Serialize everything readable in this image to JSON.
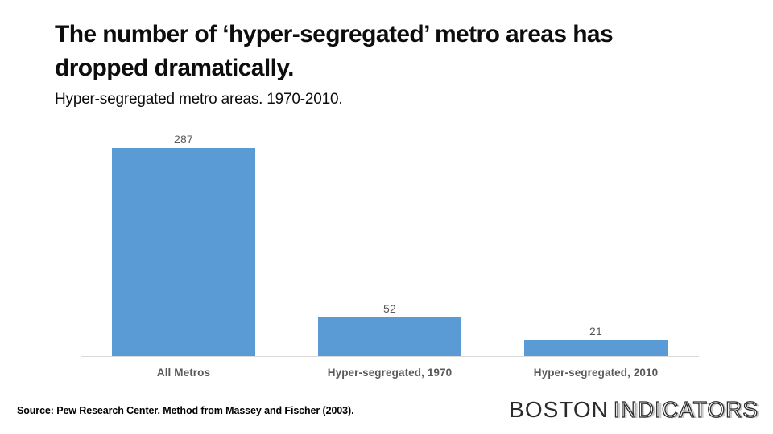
{
  "header": {
    "title": "The number of ‘hyper-segregated’ metro areas has dropped dramatically.",
    "subtitle": "Hyper-segregated metro areas. 1970-2010."
  },
  "chart_data": {
    "type": "bar",
    "categories": [
      "All Metros",
      "Hyper-segregated, 1970",
      "Hyper-segregated, 2010"
    ],
    "values": [
      287,
      52,
      21
    ],
    "data_labels": [
      287,
      52,
      21
    ],
    "title": "Hyper-segregated metro areas. 1970-2010.",
    "xlabel": "",
    "ylabel": "",
    "ylim": [
      0,
      300
    ],
    "grid": false,
    "legend": false,
    "bar_color": "#5B9BD5",
    "value_label_color": "#595959",
    "category_label_color": "#595959",
    "axis_line_color": "#D9D9D9"
  },
  "footer": {
    "source": "Source: Pew Research Center. Method from Massey and Fischer (2003).",
    "logo_boston": "BOSTON",
    "logo_indicators": "INDICATORS"
  }
}
